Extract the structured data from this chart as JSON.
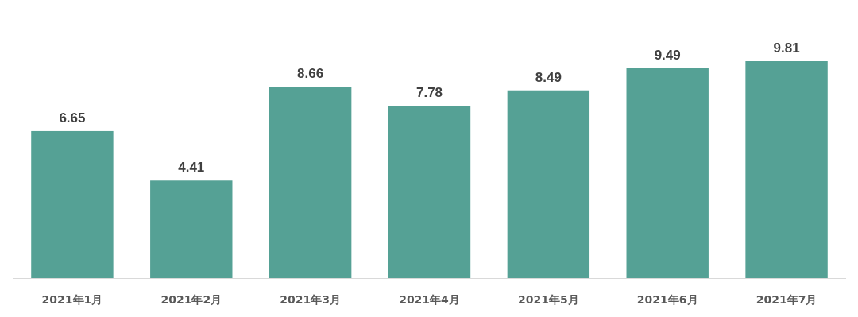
{
  "chart_data": {
    "type": "bar",
    "categories": [
      "2021年1月",
      "2021年2月",
      "2021年3月",
      "2021年4月",
      "2021年5月",
      "2021年6月",
      "2021年7月"
    ],
    "values": [
      6.65,
      4.41,
      8.66,
      7.78,
      8.49,
      9.49,
      9.81
    ],
    "color": "#55a195",
    "data_labels": true
  }
}
